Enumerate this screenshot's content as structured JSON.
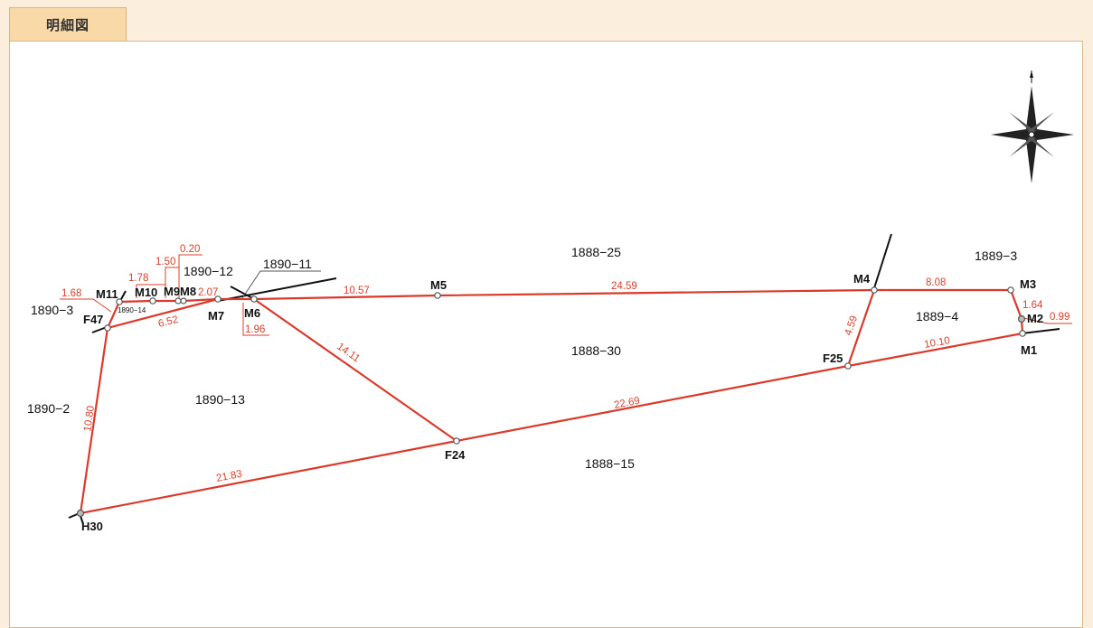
{
  "header": {
    "tab_label": "明細図"
  },
  "compass": {
    "icon": "compass-rose-icon"
  },
  "parcels": {
    "p1888_25": "1888−25",
    "p1889_3": "1889−3",
    "p1889_4": "1889−4",
    "p1888_30": "1888−30",
    "p1890_13": "1890−13",
    "p1890_2": "1890−2",
    "p1890_3": "1890−3",
    "p1888_15": "1888−15",
    "p1890_12": "1890−12",
    "p1890_11": "1890−11",
    "p1890_14": "1890−14"
  },
  "points": {
    "M1": "M1",
    "M2": "M2",
    "M3": "M3",
    "M4": "M4",
    "M5": "M5",
    "M6": "M6",
    "M7": "M7",
    "M8": "M8",
    "M9": "M9",
    "M10": "M10",
    "M11": "M11",
    "F47": "F47",
    "F24": "F24",
    "F25": "F25",
    "H30": "H30"
  },
  "distances": {
    "m4_m3": "8.08",
    "m3_m2": "1.64",
    "m2_m1": "0.99",
    "m1_f25": "10.10",
    "f25_m4": "4.59",
    "f25_f24": "22.69",
    "m5_m4": "24.59",
    "m6_m5": "10.57",
    "m6_f24": "14.11",
    "f24_h30": "21.83",
    "h30_f47": "10.80",
    "f47_m7": "6.52",
    "m7_m6": "1.96",
    "m8_m7": "2.07",
    "m9_m8": "0.20",
    "m10_m9": "1.50",
    "m11_m10": "1.78",
    "f47_m11": "1.68"
  },
  "colors": {
    "boundary": "#d93a2b",
    "dimension": "#d8402a",
    "tab": "#f9d9a8"
  }
}
